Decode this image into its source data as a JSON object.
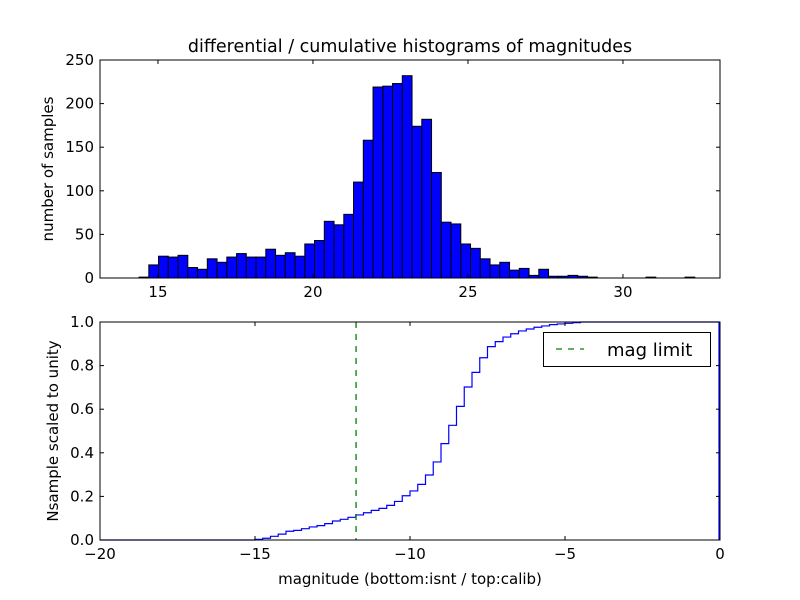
{
  "chart_data": [
    {
      "type": "bar",
      "title": "differential / cumulative histograms of magnitudes",
      "xlabel": "",
      "ylabel": "number of samples",
      "xlim": [
        13.13,
        33.13
      ],
      "ylim": [
        0,
        250
      ],
      "xticks": [
        "15",
        "20",
        "25",
        "30"
      ],
      "xtick_values": [
        15,
        20,
        25,
        30
      ],
      "yticks": [
        "0",
        "50",
        "100",
        "150",
        "200",
        "250"
      ],
      "ytick_values": [
        0,
        50,
        100,
        150,
        200,
        250
      ],
      "bin_start": 14.39,
      "bin_width": 0.3145,
      "color": "#0000ff",
      "values": [
        1,
        15,
        25,
        24,
        26,
        12,
        10,
        22,
        18,
        24,
        28,
        24,
        24,
        33,
        26,
        29,
        25,
        39,
        43,
        65,
        61,
        73,
        110,
        158,
        219,
        220,
        223,
        232,
        174,
        182,
        121,
        64,
        62,
        39,
        34,
        22,
        15,
        18,
        9,
        11,
        3,
        10,
        2,
        2,
        3,
        2,
        1,
        0,
        0,
        0,
        0,
        0,
        1,
        0,
        0,
        0,
        1,
        0,
        0
      ]
    },
    {
      "type": "line",
      "xlabel": "magnitude (bottom:isnt / top:calib)",
      "ylabel": "Nsample scaled to unity",
      "xlim": [
        -20,
        0
      ],
      "ylim": [
        0,
        1
      ],
      "xticks": [
        "−20",
        "−15",
        "−10",
        "−5",
        "0"
      ],
      "xtick_values": [
        -20,
        -15,
        -10,
        -5,
        0
      ],
      "yticks": [
        "0.0",
        "0.2",
        "0.4",
        "0.6",
        "0.8",
        "1.0"
      ],
      "ytick_values": [
        0,
        0.2,
        0.4,
        0.6,
        0.8,
        1.0
      ],
      "step_start": -15.0,
      "step_width": 0.25,
      "color": "#0000ff",
      "values": [
        0.003,
        0.008,
        0.017,
        0.027,
        0.04,
        0.044,
        0.052,
        0.06,
        0.066,
        0.075,
        0.087,
        0.095,
        0.104,
        0.115,
        0.125,
        0.136,
        0.145,
        0.159,
        0.177,
        0.203,
        0.225,
        0.255,
        0.298,
        0.358,
        0.442,
        0.526,
        0.613,
        0.702,
        0.769,
        0.836,
        0.887,
        0.91,
        0.931,
        0.946,
        0.959,
        0.968,
        0.976,
        0.982,
        0.988,
        0.991,
        0.994,
        0.997,
        1.0
      ],
      "mag_limit": -11.74,
      "mag_limit_color": "#008000",
      "legend": {
        "label": "mag limit",
        "placement": "top-right"
      }
    }
  ]
}
